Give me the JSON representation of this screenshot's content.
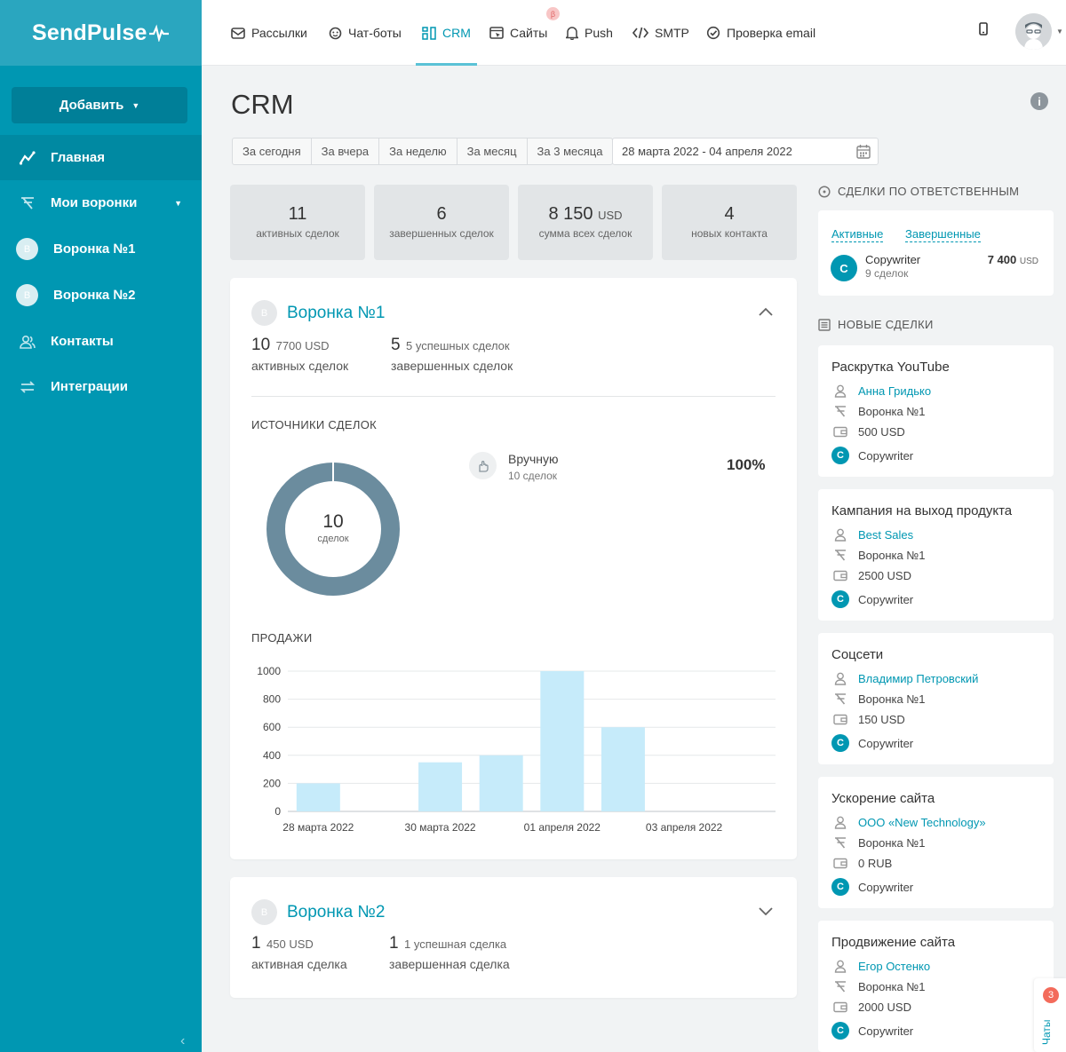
{
  "logo": "SendPulse",
  "sidebar": {
    "add_label": "Добавить",
    "items": [
      {
        "label": "Главная",
        "icon": "trend-icon"
      },
      {
        "label": "Мои воронки",
        "icon": "funnel-icon"
      },
      {
        "label": "Воронка №1",
        "badge": "В"
      },
      {
        "label": "Воронка №2",
        "badge": "В"
      },
      {
        "label": "Контакты",
        "icon": "contacts-icon"
      },
      {
        "label": "Интеграции",
        "icon": "integrations-icon"
      }
    ]
  },
  "topnav": {
    "tabs": [
      {
        "label": "Рассылки"
      },
      {
        "label": "Чат-боты"
      },
      {
        "label": "CRM"
      },
      {
        "label": "Сайты"
      },
      {
        "label": "Push"
      },
      {
        "label": "SMTP"
      },
      {
        "label": "Проверка email"
      }
    ],
    "beta": "β"
  },
  "page": {
    "title": "CRM",
    "periods": [
      "За сегодня",
      "За вчера",
      "За неделю",
      "За месяц",
      "За 3 месяца"
    ],
    "date_range": "28 марта 2022 - 04 апреля 2022"
  },
  "stats": [
    {
      "value": "11",
      "unit": "",
      "label": "активных сделок"
    },
    {
      "value": "6",
      "unit": "",
      "label": "завершенных сделок"
    },
    {
      "value": "8 150",
      "unit": "USD",
      "label": "сумма всех сделок"
    },
    {
      "value": "4",
      "unit": "",
      "label": "новых контакта"
    }
  ],
  "funnel1": {
    "badge": "В",
    "title": "Воронка №1",
    "active_count": "10",
    "active_sum": "7700 USD",
    "active_label": "активных сделок",
    "done_count": "5",
    "done_note": "5 успешных сделок",
    "done_label": "завершенных сделок",
    "sources_title": "ИСТОЧНИКИ СДЕЛОК",
    "donut_value": "10",
    "donut_label": "сделок",
    "source_name": "Вручную",
    "source_count": "10 сделок",
    "source_pct": "100%",
    "sales_title": "ПРОДАЖИ"
  },
  "funnel2": {
    "badge": "В",
    "title": "Воронка №2",
    "active_count": "1",
    "active_sum": "450 USD",
    "active_label": "активная сделка",
    "done_count": "1",
    "done_note": "1 успешная сделка",
    "done_label": "завершенная сделка"
  },
  "chart_data": {
    "type": "bar",
    "categories": [
      "28 марта 2022",
      "29 марта 2022",
      "30 марта 2022",
      "31 марта 2022",
      "01 апреля 2022",
      "02 апреля 2022",
      "03 апреля 2022",
      "04 апреля 2022"
    ],
    "x_tick_labels": [
      "28 марта 2022",
      "30 марта 2022",
      "01 апреля 2022",
      "03 апреля 2022"
    ],
    "values": [
      200,
      0,
      350,
      400,
      1000,
      600,
      0,
      0
    ],
    "y_ticks": [
      0,
      200,
      400,
      600,
      800,
      1000
    ],
    "ylim": [
      0,
      1000
    ],
    "title": "ПРОДАЖИ",
    "xlabel": "",
    "ylabel": "",
    "bar_color": "#c6ebfa",
    "grid": true
  },
  "responsible": {
    "title": "СДЕЛКИ ПО ОТВЕТСТВЕННЫМ",
    "tab_active": "Активные",
    "tab_done": "Завершенные",
    "person_initial": "C",
    "person_name": "Copywriter",
    "person_deals": "9 сделок",
    "person_sum": "7 400",
    "person_unit": "USD"
  },
  "new_deals": {
    "title": "НОВЫЕ СДЕЛКИ",
    "items": [
      {
        "title": "Раскрутка YouTube",
        "contact": "Анна Гридько",
        "funnel": "Воронка №1",
        "amount": "500 USD",
        "owner": "Copywriter"
      },
      {
        "title": "Кампания на выход продукта",
        "contact": "Best Sales",
        "funnel": "Воронка №1",
        "amount": "2500 USD",
        "owner": "Copywriter"
      },
      {
        "title": "Соцсети",
        "contact": "Владимир Петровский",
        "funnel": "Воронка №1",
        "amount": "150 USD",
        "owner": "Copywriter"
      },
      {
        "title": "Ускорение сайта",
        "contact": "ООО «New Technology»",
        "funnel": "Воронка №1",
        "amount": "0 RUB",
        "owner": "Copywriter"
      },
      {
        "title": "Продвижение сайта",
        "contact": "Егор Остенко",
        "funnel": "Воронка №1",
        "amount": "2000 USD",
        "owner": "Copywriter"
      }
    ],
    "owner_initial": "C"
  },
  "chats": {
    "count": "3",
    "label": "Чаты"
  },
  "colors": {
    "accent": "#0097b2",
    "sidebar": "#0097b2",
    "donut": "#6b8c9e",
    "bar": "#c6ebfa"
  }
}
